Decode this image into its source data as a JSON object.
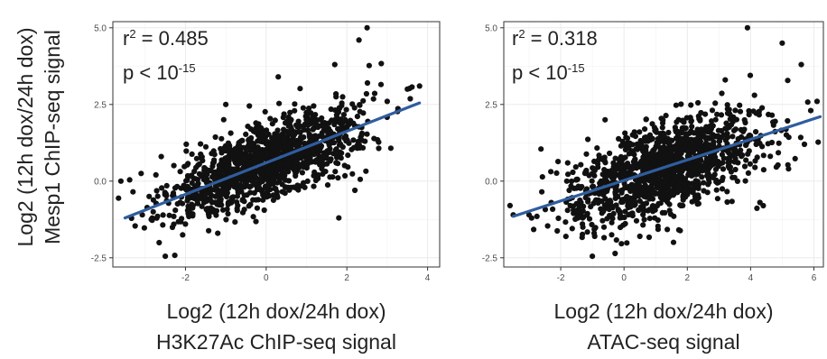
{
  "figure": {
    "shared_ylabel_line1": "Log2 (12h dox/24h dox)",
    "shared_ylabel_line2": "Mesp1 ChIP-seq signal"
  },
  "style": {
    "point_color": "#111111",
    "line_color": "#2f5d9e",
    "grid_color": "#ebebeb",
    "panel_border": "#333333"
  },
  "chart_data": [
    {
      "type": "scatter",
      "title": "",
      "xlabel_line1": "Log2 (12h dox/24h dox)",
      "xlabel_line2": "H3K27Ac ChIP-seq signal",
      "ylabel": "",
      "xlim": [
        -3.8,
        4.3
      ],
      "ylim": [
        -2.8,
        5.2
      ],
      "x_ticks": [
        -2,
        0,
        2,
        4
      ],
      "y_ticks": [
        -2.5,
        0.0,
        2.5,
        5.0
      ],
      "x_tick_labels": [
        "-2",
        "0",
        "2",
        "4"
      ],
      "y_tick_labels": [
        "-2.5",
        "0.0",
        "2.5",
        "5.0"
      ],
      "grid": true,
      "stat_r2_label": "r",
      "stat_r2_sup": "2",
      "stat_r2_value": " = 0.485",
      "stat_p_label": "p < 10",
      "stat_p_sup": "-15",
      "regression_line": {
        "x": [
          -3.5,
          3.8
        ],
        "y": [
          -1.2,
          2.55
        ]
      },
      "cloud": {
        "n": 1300,
        "x_mean": 0.0,
        "x_sd": 1.15,
        "slope": 0.52,
        "intercept": 0.62,
        "resid_sd": 0.62
      },
      "points": [
        {
          "x": 2.5,
          "y": 5.0
        },
        {
          "x": 2.3,
          "y": 4.6
        },
        {
          "x": 1.7,
          "y": 3.8
        },
        {
          "x": 3.8,
          "y": 3.1
        },
        {
          "x": 3.5,
          "y": 3.0
        },
        {
          "x": -2.5,
          "y": -2.45
        },
        {
          "x": -3.6,
          "y": 0.0
        },
        {
          "x": -3.3,
          "y": -0.35
        },
        {
          "x": -3.1,
          "y": 0.25
        },
        {
          "x": -2.9,
          "y": -0.5
        },
        {
          "x": -2.6,
          "y": 0.8
        },
        {
          "x": -2.0,
          "y": -1.4
        },
        {
          "x": -1.2,
          "y": -1.7
        },
        {
          "x": 1.8,
          "y": -1.2
        },
        {
          "x": 2.2,
          "y": -0.3
        },
        {
          "x": -1.0,
          "y": 2.5
        },
        {
          "x": 0.3,
          "y": 3.4
        },
        {
          "x": 3.0,
          "y": 2.6
        },
        {
          "x": -2.8,
          "y": -1.0
        }
      ]
    },
    {
      "type": "scatter",
      "title": "",
      "xlabel_line1": "Log2 (12h dox/24h dox)",
      "xlabel_line2": "ATAC-seq signal",
      "ylabel": "",
      "xlim": [
        -3.8,
        6.3
      ],
      "ylim": [
        -2.8,
        5.2
      ],
      "x_ticks": [
        -2,
        0,
        2,
        4,
        6
      ],
      "y_ticks": [
        -2.5,
        0.0,
        2.5,
        5.0
      ],
      "x_tick_labels": [
        "-2",
        "0",
        "2",
        "4",
        "6"
      ],
      "y_tick_labels": [
        "-2.5",
        "0.0",
        "2.5",
        "5.0"
      ],
      "grid": true,
      "stat_r2_label": "r",
      "stat_r2_sup": "2",
      "stat_r2_value": " = 0.318",
      "stat_p_label": "p < 10",
      "stat_p_sup": "-15",
      "regression_line": {
        "x": [
          -3.5,
          6.2
        ],
        "y": [
          -1.15,
          2.1
        ]
      },
      "cloud": {
        "n": 1300,
        "x_mean": 1.3,
        "x_sd": 1.45,
        "slope": 0.33,
        "intercept": 0.0,
        "resid_sd": 0.72
      },
      "points": [
        {
          "x": 3.9,
          "y": 5.0
        },
        {
          "x": 5.0,
          "y": 4.5
        },
        {
          "x": 5.6,
          "y": 3.8
        },
        {
          "x": 6.1,
          "y": 2.6
        },
        {
          "x": 5.9,
          "y": 2.3
        },
        {
          "x": -1.0,
          "y": -2.45
        },
        {
          "x": -3.5,
          "y": -1.1
        },
        {
          "x": -3.0,
          "y": -1.1
        },
        {
          "x": -2.6,
          "y": -0.35
        },
        {
          "x": -2.3,
          "y": -0.7
        },
        {
          "x": -1.7,
          "y": -0.8
        },
        {
          "x": -1.3,
          "y": -1.5
        },
        {
          "x": 4.4,
          "y": -0.8
        },
        {
          "x": 5.2,
          "y": 0.4
        },
        {
          "x": 3.2,
          "y": 3.3
        },
        {
          "x": -0.6,
          "y": 2.0
        },
        {
          "x": 0.5,
          "y": -1.8
        },
        {
          "x": 5.7,
          "y": 1.2
        }
      ]
    }
  ]
}
